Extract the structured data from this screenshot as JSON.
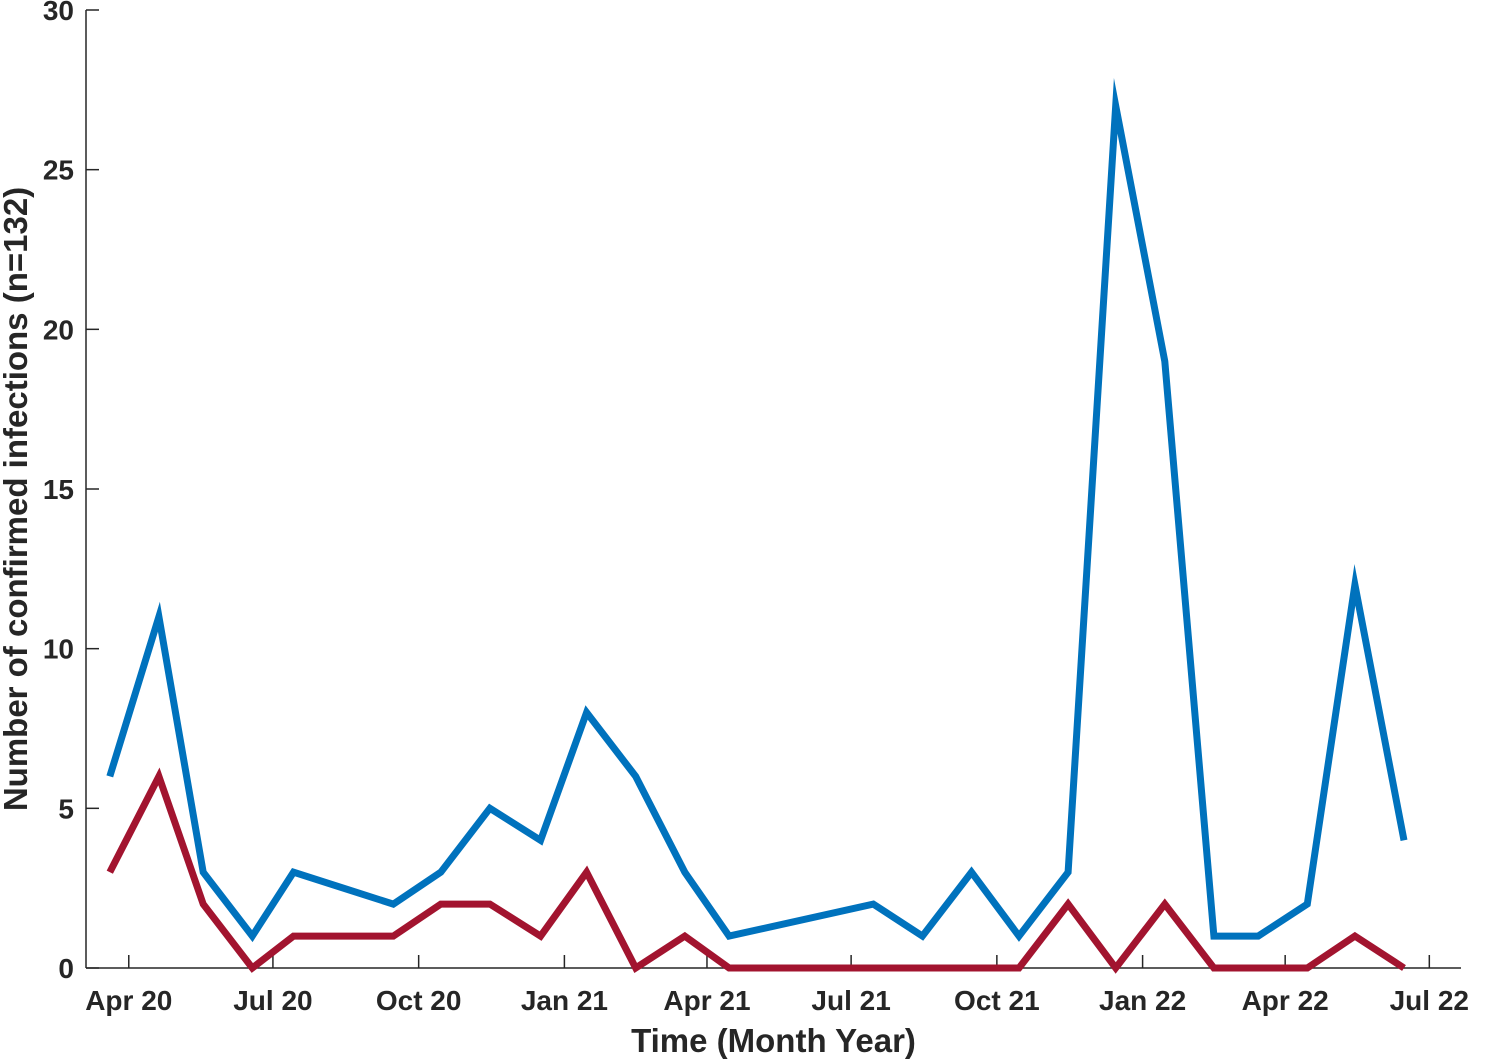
{
  "chart_data": {
    "type": "line",
    "title": "",
    "xlabel": "Time (Month Year)",
    "ylabel": "Number of confirmed infections (n=132)",
    "ylim": [
      0,
      30
    ],
    "yticks": [
      0,
      5,
      10,
      15,
      20,
      25,
      30
    ],
    "xticks": [
      {
        "date": "2020-04-01",
        "label": "Apr 20"
      },
      {
        "date": "2020-07-01",
        "label": "Jul 20"
      },
      {
        "date": "2020-10-01",
        "label": "Oct 20"
      },
      {
        "date": "2021-01-01",
        "label": "Jan 21"
      },
      {
        "date": "2021-04-01",
        "label": "Apr 21"
      },
      {
        "date": "2021-07-01",
        "label": "Jul 21"
      },
      {
        "date": "2021-10-01",
        "label": "Oct 21"
      },
      {
        "date": "2022-01-01",
        "label": "Jan 22"
      },
      {
        "date": "2022-04-01",
        "label": "Apr 22"
      },
      {
        "date": "2022-07-01",
        "label": "Jul 22"
      }
    ],
    "xlim": [
      "2020-03-05",
      "2022-07-21"
    ],
    "grid": false,
    "legend": "none",
    "series": [
      {
        "color": "#0072BD",
        "points": [
          {
            "x": "2020-03-20",
            "y": 6
          },
          {
            "x": "2020-04-20",
            "y": 11
          },
          {
            "x": "2020-05-18",
            "y": 3
          },
          {
            "x": "2020-06-18",
            "y": 1
          },
          {
            "x": "2020-07-14",
            "y": 3
          },
          {
            "x": "2020-09-15",
            "y": 2
          },
          {
            "x": "2020-10-15",
            "y": 3
          },
          {
            "x": "2020-11-15",
            "y": 5
          },
          {
            "x": "2020-12-17",
            "y": 4
          },
          {
            "x": "2021-01-15",
            "y": 8
          },
          {
            "x": "2021-02-15",
            "y": 6
          },
          {
            "x": "2021-03-18",
            "y": 3
          },
          {
            "x": "2021-04-15",
            "y": 1
          },
          {
            "x": "2021-07-15",
            "y": 2
          },
          {
            "x": "2021-08-15",
            "y": 1
          },
          {
            "x": "2021-09-15",
            "y": 3
          },
          {
            "x": "2021-10-15",
            "y": 1
          },
          {
            "x": "2021-11-15",
            "y": 3
          },
          {
            "x": "2021-12-15",
            "y": 27
          },
          {
            "x": "2022-01-15",
            "y": 19
          },
          {
            "x": "2022-02-15",
            "y": 1
          },
          {
            "x": "2022-03-15",
            "y": 1
          },
          {
            "x": "2022-04-15",
            "y": 2
          },
          {
            "x": "2022-05-15",
            "y": 12
          },
          {
            "x": "2022-06-15",
            "y": 4
          }
        ]
      },
      {
        "color": "#A2142F",
        "points": [
          {
            "x": "2020-03-20",
            "y": 3
          },
          {
            "x": "2020-04-20",
            "y": 6
          },
          {
            "x": "2020-05-18",
            "y": 2
          },
          {
            "x": "2020-06-18",
            "y": 0
          },
          {
            "x": "2020-07-14",
            "y": 1
          },
          {
            "x": "2020-09-15",
            "y": 1
          },
          {
            "x": "2020-10-15",
            "y": 2
          },
          {
            "x": "2020-11-15",
            "y": 2
          },
          {
            "x": "2020-12-17",
            "y": 1
          },
          {
            "x": "2021-01-15",
            "y": 3
          },
          {
            "x": "2021-02-15",
            "y": 0
          },
          {
            "x": "2021-03-18",
            "y": 1
          },
          {
            "x": "2021-04-15",
            "y": 0
          },
          {
            "x": "2021-07-15",
            "y": 0
          },
          {
            "x": "2021-08-15",
            "y": 0
          },
          {
            "x": "2021-09-15",
            "y": 0
          },
          {
            "x": "2021-10-15",
            "y": 0
          },
          {
            "x": "2021-11-15",
            "y": 2
          },
          {
            "x": "2021-12-15",
            "y": 0
          },
          {
            "x": "2022-01-15",
            "y": 2
          },
          {
            "x": "2022-02-15",
            "y": 0
          },
          {
            "x": "2022-03-15",
            "y": 0
          },
          {
            "x": "2022-04-15",
            "y": 0
          },
          {
            "x": "2022-05-15",
            "y": 1
          },
          {
            "x": "2022-06-15",
            "y": 0
          }
        ]
      }
    ]
  }
}
